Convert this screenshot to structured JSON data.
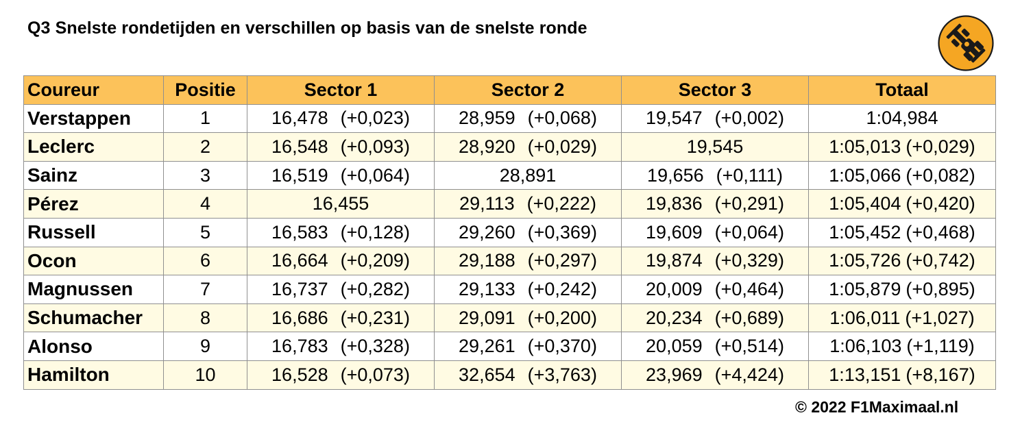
{
  "title": "Q3 Snelste rondetijden en verschillen op basis van de snelste ronde",
  "logo": {
    "icon": "race-car-icon",
    "bg_color": "#f5a623"
  },
  "headers": {
    "driver": "Coureur",
    "position": "Positie",
    "sector1": "Sector 1",
    "sector2": "Sector 2",
    "sector3": "Sector 3",
    "total": "Totaal"
  },
  "colors": {
    "header_bg": "#fcc25a",
    "row_alt_bg": "#fffbe3",
    "border": "#8f8f8f"
  },
  "rows": [
    {
      "driver": "Verstappen",
      "position": "1",
      "s1": {
        "time": "16,478",
        "diff": "(+0,023)"
      },
      "s2": {
        "time": "28,959",
        "diff": "(+0,068)"
      },
      "s3": {
        "time": "19,547",
        "diff": "(+0,002)"
      },
      "total": {
        "time": "1:04,984",
        "diff": ""
      }
    },
    {
      "driver": "Leclerc",
      "position": "2",
      "s1": {
        "time": "16,548",
        "diff": "(+0,093)"
      },
      "s2": {
        "time": "28,920",
        "diff": "(+0,029)"
      },
      "s3": {
        "time": "19,545",
        "diff": ""
      },
      "total": {
        "time": "1:05,013",
        "diff": "(+0,029)"
      }
    },
    {
      "driver": "Sainz",
      "position": "3",
      "s1": {
        "time": "16,519",
        "diff": "(+0,064)"
      },
      "s2": {
        "time": "28,891",
        "diff": ""
      },
      "s3": {
        "time": "19,656",
        "diff": "(+0,111)"
      },
      "total": {
        "time": "1:05,066",
        "diff": "(+0,082)"
      }
    },
    {
      "driver": "Pérez",
      "position": "4",
      "s1": {
        "time": "16,455",
        "diff": ""
      },
      "s2": {
        "time": "29,113",
        "diff": "(+0,222)"
      },
      "s3": {
        "time": "19,836",
        "diff": "(+0,291)"
      },
      "total": {
        "time": "1:05,404",
        "diff": "(+0,420)"
      }
    },
    {
      "driver": "Russell",
      "position": "5",
      "s1": {
        "time": "16,583",
        "diff": "(+0,128)"
      },
      "s2": {
        "time": "29,260",
        "diff": "(+0,369)"
      },
      "s3": {
        "time": "19,609",
        "diff": "(+0,064)"
      },
      "total": {
        "time": "1:05,452",
        "diff": "(+0,468)"
      }
    },
    {
      "driver": "Ocon",
      "position": "6",
      "s1": {
        "time": "16,664",
        "diff": "(+0,209)"
      },
      "s2": {
        "time": "29,188",
        "diff": "(+0,297)"
      },
      "s3": {
        "time": "19,874",
        "diff": "(+0,329)"
      },
      "total": {
        "time": "1:05,726",
        "diff": "(+0,742)"
      }
    },
    {
      "driver": "Magnussen",
      "position": "7",
      "s1": {
        "time": "16,737",
        "diff": "(+0,282)"
      },
      "s2": {
        "time": "29,133",
        "diff": "(+0,242)"
      },
      "s3": {
        "time": "20,009",
        "diff": "(+0,464)"
      },
      "total": {
        "time": "1:05,879",
        "diff": "(+0,895)"
      }
    },
    {
      "driver": "Schumacher",
      "position": "8",
      "s1": {
        "time": "16,686",
        "diff": "(+0,231)"
      },
      "s2": {
        "time": "29,091",
        "diff": "(+0,200)"
      },
      "s3": {
        "time": "20,234",
        "diff": "(+0,689)"
      },
      "total": {
        "time": "1:06,011",
        "diff": "(+1,027)"
      }
    },
    {
      "driver": "Alonso",
      "position": "9",
      "s1": {
        "time": "16,783",
        "diff": "(+0,328)"
      },
      "s2": {
        "time": "29,261",
        "diff": "(+0,370)"
      },
      "s3": {
        "time": "20,059",
        "diff": "(+0,514)"
      },
      "total": {
        "time": "1:06,103",
        "diff": "(+1,119)"
      }
    },
    {
      "driver": "Hamilton",
      "position": "10",
      "s1": {
        "time": "16,528",
        "diff": "(+0,073)"
      },
      "s2": {
        "time": "32,654",
        "diff": "(+3,763)"
      },
      "s3": {
        "time": "23,969",
        "diff": "(+4,424)"
      },
      "total": {
        "time": "1:13,151",
        "diff": "(+8,167)"
      }
    }
  ],
  "copyright": "© 2022 F1Maximaal.nl"
}
